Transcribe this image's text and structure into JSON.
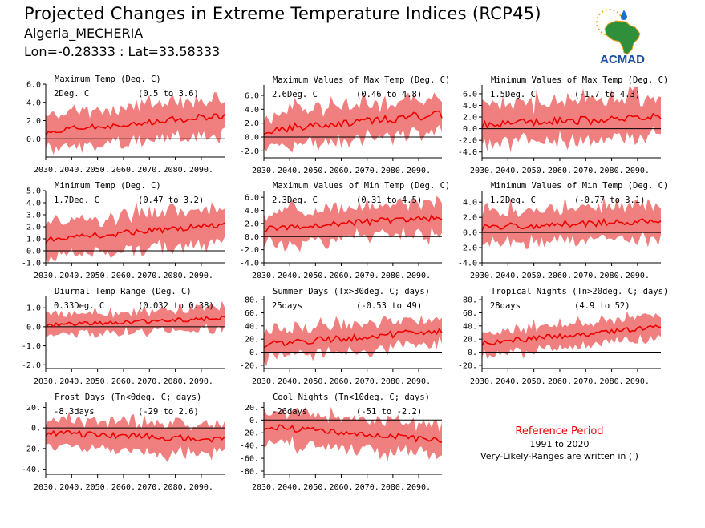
{
  "header": {
    "title": "Projected Changes in Extreme Temperature Indices (RCP45)",
    "station": "Algeria_MECHERIA",
    "coords": "Lon=-0.28333 : Lat=33.58333"
  },
  "logo": {
    "text": "ACMAD",
    "icon": "africa-map-logo",
    "colors": {
      "land": "#2f8f3a",
      "text": "#1b4fa0",
      "sun": "#f5a623",
      "drop": "#1b6fd1"
    }
  },
  "reference": {
    "title": "Reference Period",
    "period": "1991 to 2020",
    "note": "Very-Likely-Ranges are written in ( )"
  },
  "colors": {
    "band": "#f08080",
    "line": "#ee0000",
    "zero": "#000000",
    "axis": "#000000"
  },
  "chart_data": [
    {
      "type": "area",
      "title": "Maximum Temp (Deg. C)",
      "value_label": "2Deg. C",
      "range_label": "(0.5 to 3.6)",
      "xlim": [
        2030,
        2099
      ],
      "xticks": [
        2030,
        2040,
        2050,
        2060,
        2070,
        2080,
        2090
      ],
      "xticklabels": [
        "2030.",
        "2040.",
        "2050.",
        "2060.",
        "2070.",
        "2080.",
        "2090."
      ],
      "ylim": [
        -2.0,
        6.0
      ],
      "yticks": [
        0.0,
        2.0,
        4.0,
        6.0
      ],
      "yticklabels": [
        "0.0",
        "2.0",
        "4.0",
        "6.0"
      ],
      "mean_start": 0.8,
      "mean_end": 2.6,
      "spread": 1.7,
      "noise": 0.35
    },
    {
      "type": "area",
      "title": "Maximum Values of Max Temp (Deg. C)",
      "value_label": "2.6Deg. C",
      "range_label": "(0.46 to 4.8)",
      "xlim": [
        2030,
        2099
      ],
      "xticks": [
        2030,
        2040,
        2050,
        2060,
        2070,
        2080,
        2090
      ],
      "xticklabels": [
        "2030.",
        "2040.",
        "2050.",
        "2060.",
        "2070.",
        "2080.",
        "2090."
      ],
      "ylim": [
        -3.0,
        7.5
      ],
      "yticks": [
        -2.0,
        0.0,
        2.0,
        4.0,
        6.0
      ],
      "yticklabels": [
        "-2.0",
        "0.0",
        "2.0",
        "4.0",
        "6.0"
      ],
      "mean_start": 1.0,
      "mean_end": 3.3,
      "spread": 2.3,
      "noise": 0.6
    },
    {
      "type": "area",
      "title": "Minimum Values of Max Temp (Deg. C)",
      "value_label": "1.5Deg. C",
      "range_label": "(-1.7 to 4.3)",
      "xlim": [
        2030,
        2099
      ],
      "xticks": [
        2030,
        2040,
        2050,
        2060,
        2070,
        2080,
        2090
      ],
      "xticklabels": [
        "2030.",
        "2040.",
        "2050.",
        "2060.",
        "2070.",
        "2080.",
        "2090."
      ],
      "ylim": [
        -5.0,
        7.5
      ],
      "yticks": [
        -4.0,
        -2.0,
        0.0,
        2.0,
        4.0,
        6.0
      ],
      "yticklabels": [
        "-4.0",
        "-2.0",
        "0.0",
        "2.0",
        "4.0",
        "6.0"
      ],
      "mean_start": 0.8,
      "mean_end": 1.9,
      "spread": 3.0,
      "noise": 0.7
    },
    {
      "type": "area",
      "title": "Minimum Temp (Deg. C)",
      "value_label": "1.7Deg. C",
      "range_label": "(0.47 to 3.2)",
      "xlim": [
        2030,
        2099
      ],
      "xticks": [
        2030,
        2040,
        2050,
        2060,
        2070,
        2080,
        2090
      ],
      "xticklabels": [
        "2030.",
        "2040.",
        "2050.",
        "2060.",
        "2070.",
        "2080.",
        "2090."
      ],
      "ylim": [
        -1.0,
        5.0
      ],
      "yticks": [
        -1.0,
        0.0,
        1.0,
        2.0,
        3.0,
        4.0,
        5.0
      ],
      "yticklabels": [
        "-1.0",
        "0.0",
        "1.0",
        "2.0",
        "3.0",
        "4.0",
        "5.0"
      ],
      "mean_start": 0.9,
      "mean_end": 2.2,
      "spread": 1.3,
      "noise": 0.25
    },
    {
      "type": "area",
      "title": "Maximum Values of Min Temp (Deg. C)",
      "value_label": "2.3Deg. C",
      "range_label": "(0.31 to 4.5)",
      "xlim": [
        2030,
        2099
      ],
      "xticks": [
        2030,
        2040,
        2050,
        2060,
        2070,
        2080,
        2090
      ],
      "xticklabels": [
        "2030.",
        "2040.",
        "2050.",
        "2060.",
        "2070.",
        "2080.",
        "2090."
      ],
      "ylim": [
        -4.0,
        7.0
      ],
      "yticks": [
        -4.0,
        -2.0,
        0.0,
        2.0,
        4.0,
        6.0
      ],
      "yticklabels": [
        "-4.0",
        "-2.0",
        "0.0",
        "2.0",
        "4.0",
        "6.0"
      ],
      "mean_start": 1.2,
      "mean_end": 3.0,
      "spread": 2.2,
      "noise": 0.5
    },
    {
      "type": "area",
      "title": "Minimum Values of Min Temp (Deg. C)",
      "value_label": "1.2Deg. C",
      "range_label": "(-0.77 to 3.1)",
      "xlim": [
        2030,
        2099
      ],
      "xticks": [
        2030,
        2040,
        2050,
        2060,
        2070,
        2080,
        2090
      ],
      "xticklabels": [
        "2030.",
        "2040.",
        "2050.",
        "2060.",
        "2070.",
        "2080.",
        "2090."
      ],
      "ylim": [
        -4.0,
        5.5
      ],
      "yticks": [
        -4.0,
        -2.0,
        0.0,
        2.0,
        4.0
      ],
      "yticklabels": [
        "-4.0",
        "-2.0",
        "0.0",
        "2.0",
        "4.0"
      ],
      "mean_start": 0.7,
      "mean_end": 1.6,
      "spread": 2.0,
      "noise": 0.45
    },
    {
      "type": "area",
      "title": "Diurnal Temp Range (Deg. C)",
      "value_label": "0.33Deg. C",
      "range_label": "(0.032 to 0.38)",
      "xlim": [
        2030,
        2099
      ],
      "xticks": [
        2030,
        2040,
        2050,
        2060,
        2070,
        2080,
        2090
      ],
      "xticklabels": [
        "2030.",
        "2040.",
        "2050.",
        "2060.",
        "2070.",
        "2080.",
        "2090."
      ],
      "ylim": [
        -2.2,
        1.6
      ],
      "yticks": [
        -2.0,
        -1.0,
        0.0,
        1.0
      ],
      "yticklabels": [
        "-2.0",
        "-1.0",
        "0.0",
        "1.0"
      ],
      "mean_start": 0.1,
      "mean_end": 0.45,
      "spread": 0.5,
      "noise": 0.12
    },
    {
      "type": "area",
      "title": "Summer Days (Tx>30deg. C; days)",
      "value_label": "25days",
      "range_label": "(-0.53 to 49)",
      "xlim": [
        2030,
        2099
      ],
      "xticks": [
        2030,
        2040,
        2050,
        2060,
        2070,
        2080,
        2090
      ],
      "xticklabels": [
        "2030.",
        "2040.",
        "2050.",
        "2060.",
        "2070.",
        "2080.",
        "2090."
      ],
      "ylim": [
        -25,
        85
      ],
      "yticks": [
        -20,
        0,
        20,
        40,
        60,
        80
      ],
      "yticklabels": [
        "-20.",
        "0.",
        "20.",
        "40.",
        "60.",
        "80."
      ],
      "mean_start": 12,
      "mean_end": 33,
      "spread": 18,
      "noise": 5
    },
    {
      "type": "area",
      "title": "Tropical Nights (Tn>20deg. C; days)",
      "value_label": "28days",
      "range_label": "(4.9 to 52)",
      "xlim": [
        2030,
        2099
      ],
      "xticks": [
        2030,
        2040,
        2050,
        2060,
        2070,
        2080,
        2090
      ],
      "xticklabels": [
        "2030.",
        "2040.",
        "2050.",
        "2060.",
        "2070.",
        "2080.",
        "2090."
      ],
      "ylim": [
        -25,
        85
      ],
      "yticks": [
        -20,
        0,
        20,
        40,
        60,
        80
      ],
      "yticklabels": [
        "-20.",
        "0.",
        "20.",
        "40.",
        "60.",
        "80."
      ],
      "mean_start": 14,
      "mean_end": 38,
      "spread": 16,
      "noise": 4
    },
    {
      "type": "area",
      "title": "Frost Days (Tn<0deg. C; days)",
      "value_label": "-8.3days",
      "range_label": "(-29 to 2.6)",
      "xlim": [
        2030,
        2099
      ],
      "xticks": [
        2030,
        2040,
        2050,
        2060,
        2070,
        2080,
        2090
      ],
      "xticklabels": [
        "2030.",
        "2040.",
        "2050.",
        "2060.",
        "2070.",
        "2080.",
        "2090."
      ],
      "ylim": [
        -45,
        25
      ],
      "yticks": [
        -40,
        -20,
        0,
        20
      ],
      "yticklabels": [
        "-40.",
        "-20.",
        "0.",
        "20."
      ],
      "mean_start": -5,
      "mean_end": -11,
      "spread": 13,
      "noise": 3
    },
    {
      "type": "area",
      "title": "Cool Nights (Tn<10deg. C; days)",
      "value_label": "-26days",
      "range_label": "(-51 to -2.2)",
      "xlim": [
        2030,
        2099
      ],
      "xticks": [
        2030,
        2040,
        2050,
        2060,
        2070,
        2080,
        2090
      ],
      "xticklabels": [
        "2030.",
        "2040.",
        "2050.",
        "2060.",
        "2070.",
        "2080.",
        "2090."
      ],
      "ylim": [
        -85,
        28
      ],
      "yticks": [
        -80,
        -60,
        -40,
        -20,
        0,
        20
      ],
      "yticklabels": [
        "-80.",
        "-60.",
        "-40.",
        "-20.",
        "0.",
        "20."
      ],
      "mean_start": -10,
      "mean_end": -32,
      "spread": 22,
      "noise": 5
    }
  ]
}
